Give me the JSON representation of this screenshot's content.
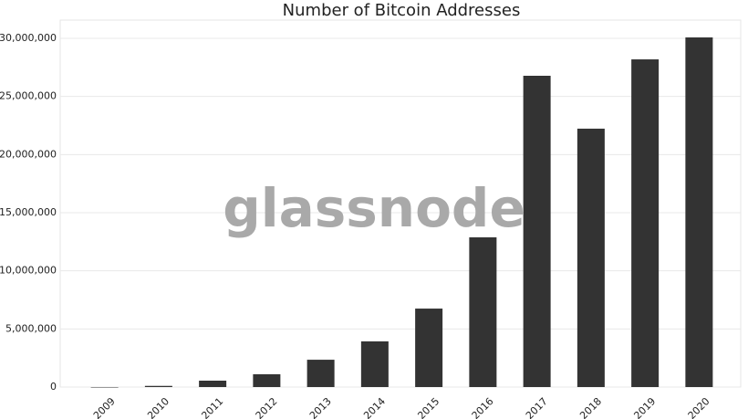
{
  "chart_data": {
    "type": "bar",
    "title": "Number of Bitcoin Addresses",
    "watermark": "glassnode",
    "categories": [
      "2009",
      "2010",
      "2011",
      "2012",
      "2013",
      "2014",
      "2015",
      "2016",
      "2017",
      "2018",
      "2019",
      "2020"
    ],
    "values": [
      0,
      100000,
      550000,
      1100000,
      2350000,
      3930000,
      6750000,
      12880000,
      26780000,
      22230000,
      28190000,
      30080000
    ],
    "color": "#333333",
    "ylim": [
      0,
      30000000
    ],
    "yticks": [
      {
        "value": 0,
        "label": "0"
      },
      {
        "value": 5000000,
        "label": "5,000,000"
      },
      {
        "value": 10000000,
        "label": "10,000,000"
      },
      {
        "value": 15000000,
        "label": "15,000,000"
      },
      {
        "value": 20000000,
        "label": "20,000,000"
      },
      {
        "value": 25000000,
        "label": "25,000,000"
      },
      {
        "value": 30000000,
        "label": "30,000,000"
      }
    ],
    "grid": true
  }
}
